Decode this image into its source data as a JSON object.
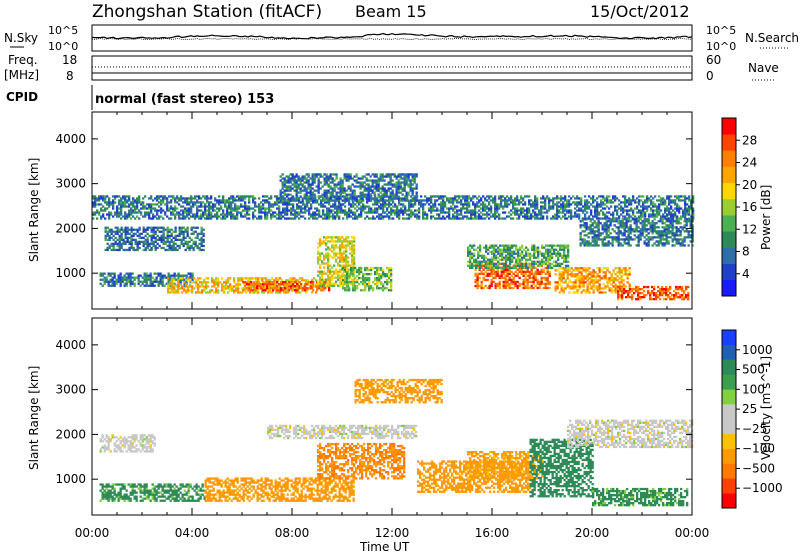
{
  "header": {
    "title": "Zhongshan Station (fitACF)",
    "beam": "Beam 15",
    "date": "15/Oct/2012"
  },
  "noise_panel": {
    "left_label": "N.Sky",
    "right_label": "N.Search",
    "left_ticks": [
      "10^5",
      "10^0"
    ],
    "right_ticks": [
      "10^5",
      "10^0"
    ]
  },
  "freq_panel": {
    "left_label_1": "Freq.",
    "left_label_2": "[MHz]",
    "left_ticks": [
      "18",
      "8"
    ],
    "right_label": "Nave",
    "right_ticks": [
      "60",
      "0"
    ]
  },
  "cpid": {
    "label": "CPID",
    "value": "normal (fast stereo) 153"
  },
  "chart_data": [
    {
      "type": "heatmap",
      "name": "power",
      "ylabel": "Slant Range [km]",
      "xlabel": "Time UT",
      "x_ticks": [
        "00:00",
        "04:00",
        "08:00",
        "12:00",
        "16:00",
        "20:00",
        "00:00"
      ],
      "y_ticks": [
        1000,
        2000,
        3000,
        4000
      ],
      "ylim": [
        200,
        4600
      ],
      "xlim_hours": [
        0,
        24
      ],
      "colorbar": {
        "label": "Power [dB]",
        "ticks": [
          4,
          8,
          12,
          16,
          20,
          24,
          28
        ],
        "range": [
          0,
          32
        ],
        "colors": [
          "#1a1aff",
          "#2040c8",
          "#2f6ea8",
          "#2e8b57",
          "#4caf50",
          "#9acd32",
          "#ffd700",
          "#ffa500",
          "#ff7f00",
          "#ff4500",
          "#ff0000"
        ]
      },
      "bands": [
        {
          "t0": 0.3,
          "t1": 4.0,
          "r0": 700,
          "r1": 1000,
          "value": 8
        },
        {
          "t0": 3.0,
          "t1": 9.0,
          "r0": 550,
          "r1": 900,
          "value": 20
        },
        {
          "t0": 6.0,
          "t1": 9.5,
          "r0": 600,
          "r1": 800,
          "value": 26
        },
        {
          "t0": 9.0,
          "t1": 10.5,
          "r0": 700,
          "r1": 1800,
          "value": 18
        },
        {
          "t0": 10.0,
          "t1": 12.0,
          "r0": 600,
          "r1": 1100,
          "value": 14
        },
        {
          "t0": 15.3,
          "t1": 18.3,
          "r0": 650,
          "r1": 1200,
          "value": 26
        },
        {
          "t0": 15.0,
          "t1": 19.0,
          "r0": 1100,
          "r1": 1600,
          "value": 12
        },
        {
          "t0": 18.5,
          "t1": 21.5,
          "r0": 550,
          "r1": 1100,
          "value": 22
        },
        {
          "t0": 21.0,
          "t1": 23.8,
          "r0": 400,
          "r1": 700,
          "value": 27
        },
        {
          "t0": 0.0,
          "t1": 24.0,
          "r0": 2200,
          "r1": 2700,
          "value": 8
        },
        {
          "t0": 0.5,
          "t1": 4.5,
          "r0": 1500,
          "r1": 2000,
          "value": 8
        },
        {
          "t0": 7.5,
          "t1": 13.0,
          "r0": 2600,
          "r1": 3200,
          "value": 8
        },
        {
          "t0": 19.5,
          "t1": 24.0,
          "r0": 1600,
          "r1": 2200,
          "value": 8
        }
      ]
    },
    {
      "type": "heatmap",
      "name": "velocity",
      "ylabel": "Slant Range [km]",
      "xlabel": "Time UT",
      "x_ticks": [
        "00:00",
        "04:00",
        "08:00",
        "12:00",
        "16:00",
        "20:00",
        "00:00"
      ],
      "y_ticks": [
        1000,
        2000,
        3000,
        4000
      ],
      "ylim": [
        200,
        4600
      ],
      "xlim_hours": [
        0,
        24
      ],
      "colorbar": {
        "label": "Velocity [m s^-1]",
        "ticks": [
          "1000",
          "500",
          "100",
          "25",
          "−25",
          "−100",
          "−500",
          "−1000"
        ],
        "colors": [
          "#1a3fff",
          "#2060b0",
          "#2e8b57",
          "#3aa050",
          "#80d040",
          "#c8c8c8",
          "#c8c8c8",
          "#ffc000",
          "#ff9a00",
          "#ff7a00",
          "#ff4000",
          "#ff0000"
        ]
      },
      "bands": [
        {
          "t0": 0.3,
          "t1": 4.5,
          "r0": 500,
          "r1": 900,
          "value": 80
        },
        {
          "t0": 0.3,
          "t1": 2.5,
          "r0": 1600,
          "r1": 2000,
          "value": 0
        },
        {
          "t0": 4.5,
          "t1": 10.5,
          "r0": 500,
          "r1": 1000,
          "value": -150
        },
        {
          "t0": 9.0,
          "t1": 12.5,
          "r0": 1000,
          "r1": 1800,
          "value": -300
        },
        {
          "t0": 10.5,
          "t1": 14.0,
          "r0": 2700,
          "r1": 3200,
          "value": -200
        },
        {
          "t0": 13.0,
          "t1": 17.5,
          "r0": 700,
          "r1": 1400,
          "value": -150
        },
        {
          "t0": 15.0,
          "t1": 18.0,
          "r0": 1000,
          "r1": 1600,
          "value": -120
        },
        {
          "t0": 17.5,
          "t1": 20.0,
          "r0": 600,
          "r1": 1900,
          "value": 90
        },
        {
          "t0": 20.0,
          "t1": 23.8,
          "r0": 400,
          "r1": 800,
          "value": 80
        },
        {
          "t0": 19.0,
          "t1": 24.0,
          "r0": 1700,
          "r1": 2300,
          "value": 0
        },
        {
          "t0": 7.0,
          "t1": 13.0,
          "r0": 1900,
          "r1": 2200,
          "value": 0
        }
      ]
    }
  ]
}
